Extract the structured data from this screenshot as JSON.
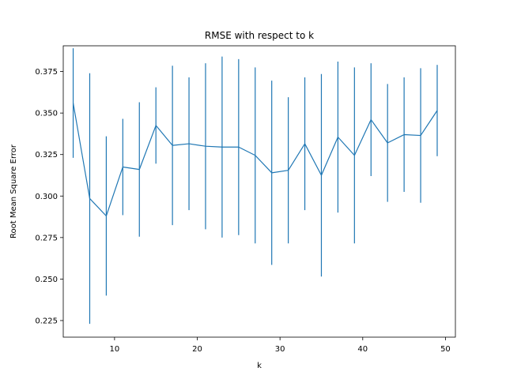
{
  "chart_data": {
    "type": "line",
    "title": "RMSE with respect to k",
    "xlabel": "k",
    "ylabel": "Root Mean Square Error",
    "xlim": [
      3.8,
      51.2
    ],
    "ylim": [
      0.215,
      0.3905
    ],
    "xticks": [
      10,
      20,
      30,
      40,
      50
    ],
    "yticks": [
      0.225,
      0.25,
      0.275,
      0.3,
      0.325,
      0.35,
      0.375
    ],
    "ytick_labels": [
      "0.225",
      "0.250",
      "0.275",
      "0.300",
      "0.325",
      "0.350",
      "0.375"
    ],
    "grid": false,
    "color": "#1f77b4",
    "series": [
      {
        "x": [
          5,
          7,
          9,
          11,
          13,
          15,
          17,
          19,
          21,
          23,
          25,
          27,
          29,
          31,
          33,
          35,
          37,
          39,
          41,
          43,
          45,
          47,
          49
        ],
        "y": [
          0.356,
          0.2985,
          0.288,
          0.3175,
          0.316,
          0.3425,
          0.3305,
          0.3315,
          0.33,
          0.3295,
          0.3295,
          0.3245,
          0.314,
          0.3155,
          0.3315,
          0.3125,
          0.3355,
          0.3245,
          0.346,
          0.332,
          0.337,
          0.3365,
          0.3515
        ],
        "error": [
          0.033,
          0.0755,
          0.048,
          0.029,
          0.0405,
          0.023,
          0.048,
          0.04,
          0.05,
          0.0545,
          0.053,
          0.053,
          0.0555,
          0.044,
          0.04,
          0.061,
          0.0455,
          0.053,
          0.034,
          0.0355,
          0.0345,
          0.0405,
          0.0275
        ]
      }
    ]
  }
}
